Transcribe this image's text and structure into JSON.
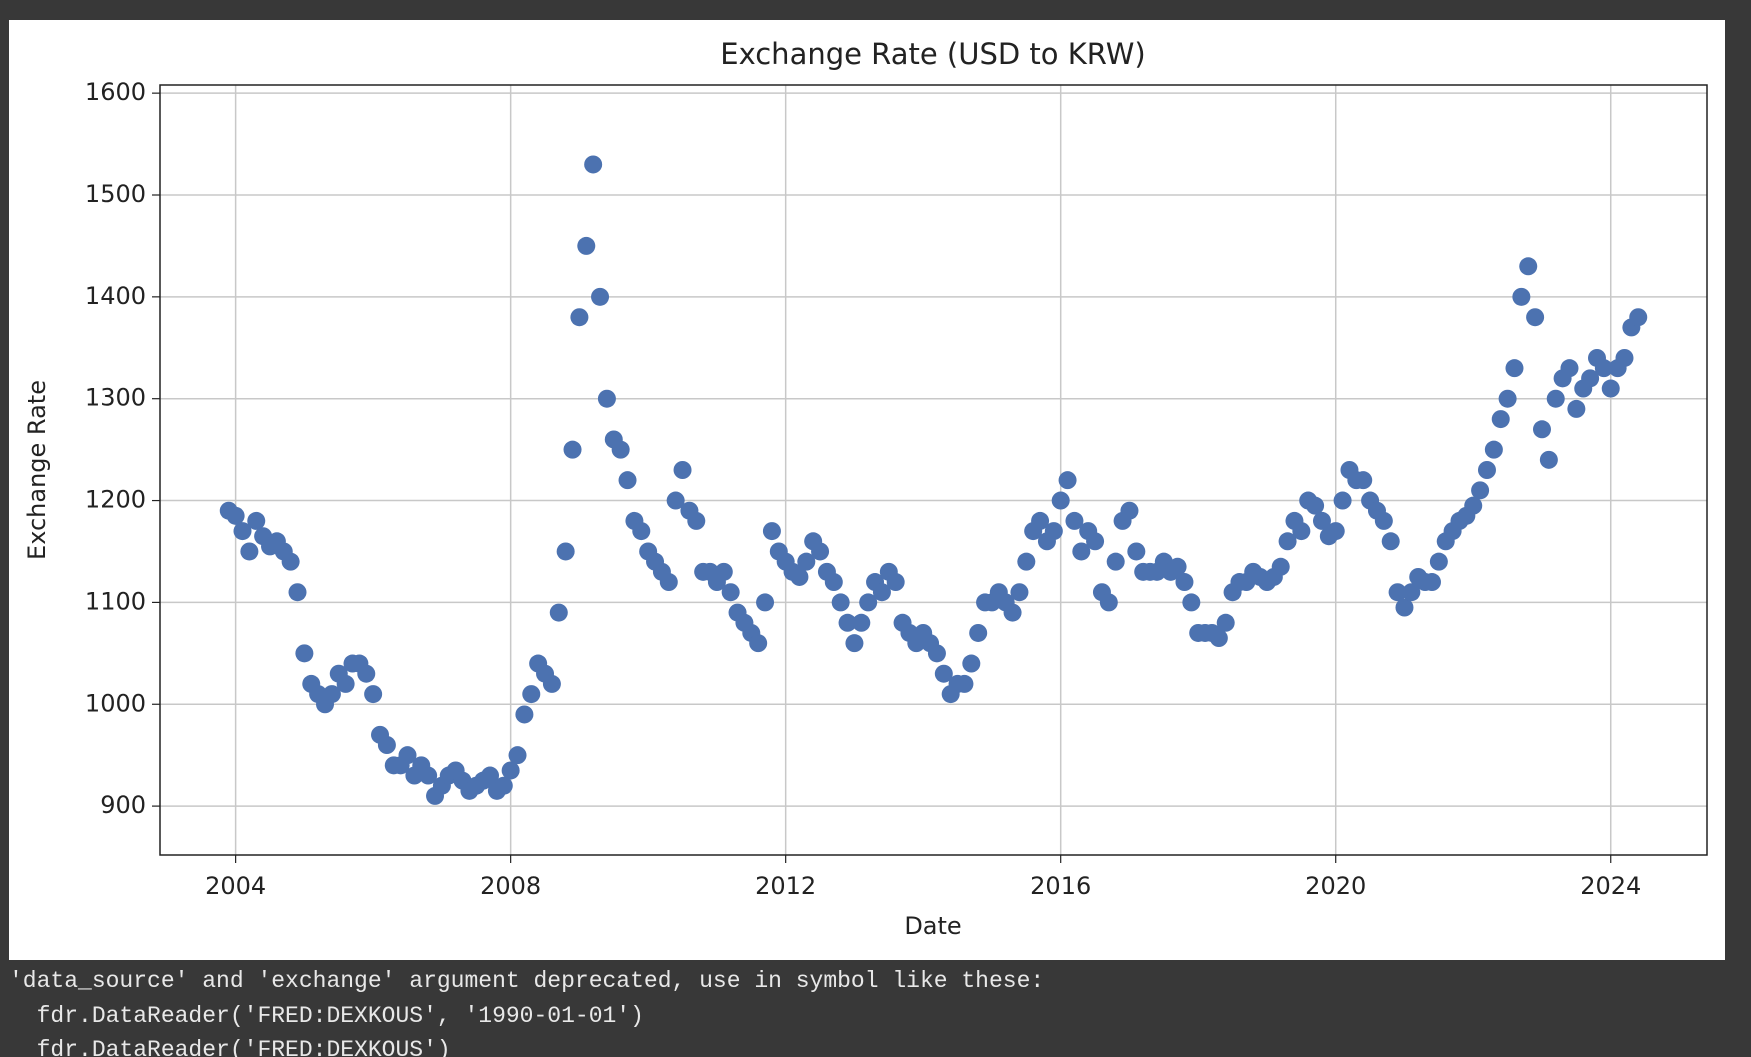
{
  "chart_data": {
    "type": "scatter",
    "title": "Exchange Rate (USD to KRW)",
    "xlabel": "Date",
    "ylabel": "Exchange Rate",
    "xlim": [
      2002.9,
      2025.4
    ],
    "xticks": [
      2004,
      2008,
      2012,
      2016,
      2020,
      2024
    ],
    "ylim": [
      852,
      1608
    ],
    "yticks": [
      900,
      1000,
      1100,
      1200,
      1300,
      1400,
      1500,
      1600
    ],
    "grid": true,
    "color": "#4c72b0",
    "x": [
      2003.9,
      2004.0,
      2004.1,
      2004.2,
      2004.3,
      2004.4,
      2004.5,
      2004.6,
      2004.7,
      2004.8,
      2004.9,
      2005.0,
      2005.1,
      2005.2,
      2005.3,
      2005.4,
      2005.5,
      2005.6,
      2005.7,
      2005.8,
      2005.9,
      2006.0,
      2006.1,
      2006.2,
      2006.3,
      2006.4,
      2006.5,
      2006.6,
      2006.7,
      2006.8,
      2006.9,
      2007.0,
      2007.1,
      2007.2,
      2007.3,
      2007.4,
      2007.5,
      2007.6,
      2007.7,
      2007.8,
      2007.9,
      2008.0,
      2008.1,
      2008.2,
      2008.3,
      2008.4,
      2008.5,
      2008.6,
      2008.7,
      2008.8,
      2008.9,
      2009.0,
      2009.1,
      2009.2,
      2009.3,
      2009.4,
      2009.5,
      2009.6,
      2009.7,
      2009.8,
      2009.9,
      2010.0,
      2010.1,
      2010.2,
      2010.3,
      2010.4,
      2010.5,
      2010.6,
      2010.7,
      2010.8,
      2010.9,
      2011.0,
      2011.1,
      2011.2,
      2011.3,
      2011.4,
      2011.5,
      2011.6,
      2011.7,
      2011.8,
      2011.9,
      2012.0,
      2012.1,
      2012.2,
      2012.3,
      2012.4,
      2012.5,
      2012.6,
      2012.7,
      2012.8,
      2012.9,
      2013.0,
      2013.1,
      2013.2,
      2013.3,
      2013.4,
      2013.5,
      2013.6,
      2013.7,
      2013.8,
      2013.9,
      2014.0,
      2014.1,
      2014.2,
      2014.3,
      2014.4,
      2014.5,
      2014.6,
      2014.7,
      2014.8,
      2014.9,
      2015.0,
      2015.1,
      2015.2,
      2015.3,
      2015.4,
      2015.5,
      2015.6,
      2015.7,
      2015.8,
      2015.9,
      2016.0,
      2016.1,
      2016.2,
      2016.3,
      2016.4,
      2016.5,
      2016.6,
      2016.7,
      2016.8,
      2016.9,
      2017.0,
      2017.1,
      2017.2,
      2017.3,
      2017.4,
      2017.5,
      2017.6,
      2017.7,
      2017.8,
      2017.9,
      2018.0,
      2018.1,
      2018.2,
      2018.3,
      2018.4,
      2018.5,
      2018.6,
      2018.7,
      2018.8,
      2018.9,
      2019.0,
      2019.1,
      2019.2,
      2019.3,
      2019.4,
      2019.5,
      2019.6,
      2019.7,
      2019.8,
      2019.9,
      2020.0,
      2020.1,
      2020.2,
      2020.3,
      2020.4,
      2020.5,
      2020.6,
      2020.7,
      2020.8,
      2020.9,
      2021.0,
      2021.1,
      2021.2,
      2021.3,
      2021.4,
      2021.5,
      2021.6,
      2021.7,
      2021.8,
      2021.9,
      2022.0,
      2022.1,
      2022.2,
      2022.3,
      2022.4,
      2022.5,
      2022.6,
      2022.7,
      2022.8,
      2022.9,
      2023.0,
      2023.1,
      2023.2,
      2023.3,
      2023.4,
      2023.5,
      2023.6,
      2023.7,
      2023.8,
      2023.9,
      2024.0,
      2024.1,
      2024.2,
      2024.3,
      2024.4
    ],
    "values": [
      1190,
      1185,
      1170,
      1150,
      1180,
      1165,
      1155,
      1160,
      1150,
      1140,
      1110,
      1050,
      1020,
      1010,
      1000,
      1010,
      1030,
      1020,
      1040,
      1040,
      1030,
      1010,
      970,
      960,
      940,
      940,
      950,
      930,
      940,
      930,
      910,
      920,
      930,
      935,
      925,
      915,
      920,
      925,
      930,
      915,
      920,
      935,
      950,
      990,
      1010,
      1040,
      1030,
      1020,
      1090,
      1150,
      1250,
      1380,
      1450,
      1530,
      1400,
      1300,
      1260,
      1250,
      1220,
      1180,
      1170,
      1150,
      1140,
      1130,
      1120,
      1200,
      1230,
      1190,
      1180,
      1130,
      1130,
      1120,
      1130,
      1110,
      1090,
      1080,
      1070,
      1060,
      1100,
      1170,
      1150,
      1140,
      1130,
      1125,
      1140,
      1160,
      1150,
      1130,
      1120,
      1100,
      1080,
      1060,
      1080,
      1100,
      1120,
      1110,
      1130,
      1120,
      1080,
      1070,
      1060,
      1070,
      1060,
      1050,
      1030,
      1010,
      1020,
      1020,
      1040,
      1070,
      1100,
      1100,
      1110,
      1100,
      1090,
      1110,
      1140,
      1170,
      1180,
      1160,
      1170,
      1200,
      1220,
      1180,
      1150,
      1170,
      1160,
      1110,
      1100,
      1140,
      1180,
      1190,
      1150,
      1130,
      1130,
      1130,
      1140,
      1130,
      1135,
      1120,
      1100,
      1070,
      1070,
      1070,
      1065,
      1080,
      1110,
      1120,
      1120,
      1130,
      1125,
      1120,
      1125,
      1135,
      1160,
      1180,
      1170,
      1200,
      1195,
      1180,
      1165,
      1170,
      1200,
      1230,
      1220,
      1220,
      1200,
      1190,
      1180,
      1160,
      1110,
      1095,
      1110,
      1125,
      1120,
      1120,
      1140,
      1160,
      1170,
      1180,
      1185,
      1195,
      1210,
      1230,
      1250,
      1280,
      1300,
      1330,
      1400,
      1430,
      1380,
      1270,
      1240,
      1300,
      1320,
      1330,
      1290,
      1310,
      1320,
      1340,
      1330,
      1310,
      1330,
      1340,
      1370,
      1380
    ]
  },
  "console": {
    "lines": [
      "'data_source' and 'exchange' argument deprecated, use in symbol like these:",
      "  fdr.DataReader('FRED:DEXKOUS', '1990-01-01')",
      "  fdr.DataReader('FRED:DEXKOUS')"
    ]
  }
}
